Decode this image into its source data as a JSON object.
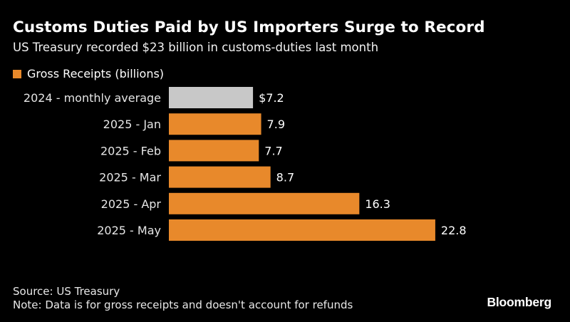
{
  "title": "Customs Duties Paid by US Importers Surge to Record",
  "subtitle": "US Treasury recorded $23 billion in customs-duties last month",
  "legend": {
    "label": "Gross Receipts (billions)",
    "color": "#e8892b"
  },
  "colors": {
    "background": "#000000",
    "highlight": "#e8892b",
    "baseline": "#c8c8c8"
  },
  "chart_data": {
    "type": "bar",
    "orientation": "horizontal",
    "categories": [
      "2024 - monthly average",
      "2025 - Jan",
      "2025 - Feb",
      "2025 - Mar",
      "2025 - Apr",
      "2025 - May"
    ],
    "values": [
      7.2,
      7.9,
      7.7,
      8.7,
      16.3,
      22.8
    ],
    "value_labels": [
      "$7.2",
      "7.9",
      "7.7",
      "8.7",
      "16.3",
      "22.8"
    ],
    "bar_colors": [
      "#c8c8c8",
      "#e8892b",
      "#e8892b",
      "#e8892b",
      "#e8892b",
      "#e8892b"
    ],
    "series": [
      {
        "name": "Gross Receipts (billions)",
        "values": [
          7.2,
          7.9,
          7.7,
          8.7,
          16.3,
          22.8
        ]
      }
    ],
    "xlim": [
      0,
      22.8
    ],
    "grid": false,
    "legend_position": "top-left"
  },
  "footer": {
    "source": "Source: US Treasury",
    "note": "Note: Data is for gross receipts and doesn't account for refunds"
  },
  "brand": "Bloomberg"
}
